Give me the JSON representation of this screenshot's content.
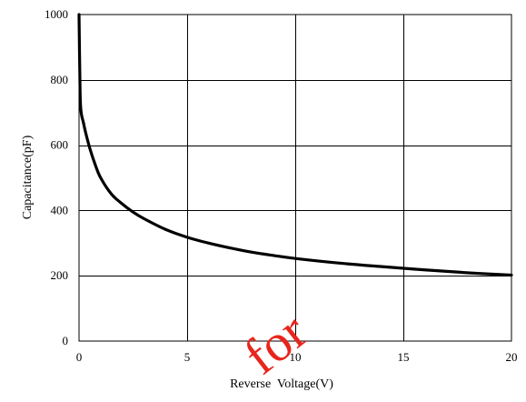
{
  "chart_data": {
    "type": "line",
    "title": "",
    "xlabel": "Reverse  Voltage(V)",
    "ylabel": "Capacitance(pF)",
    "xlim": [
      0,
      20
    ],
    "ylim": [
      0,
      1000
    ],
    "x_ticks": [
      "0",
      "5",
      "10",
      "15",
      "20"
    ],
    "y_ticks": [
      "0",
      "200",
      "400",
      "600",
      "800",
      "1000"
    ],
    "grid": true,
    "legend": "none",
    "line_color": "#000000",
    "series": [
      {
        "x": [
          0,
          0.05,
          0.1,
          0.2,
          0.3,
          0.5,
          0.75,
          1,
          1.5,
          2,
          2.5,
          3,
          4,
          5,
          6,
          7,
          8,
          9,
          10,
          12,
          14,
          16,
          18,
          20
        ],
        "y": [
          1000,
          760,
          700,
          670,
          640,
          590,
          540,
          500,
          450,
          420,
          395,
          375,
          342,
          318,
          300,
          285,
          272,
          262,
          253,
          239,
          228,
          218,
          209,
          202
        ]
      }
    ]
  },
  "watermark": {
    "text": "for",
    "color": "#e8251c"
  }
}
